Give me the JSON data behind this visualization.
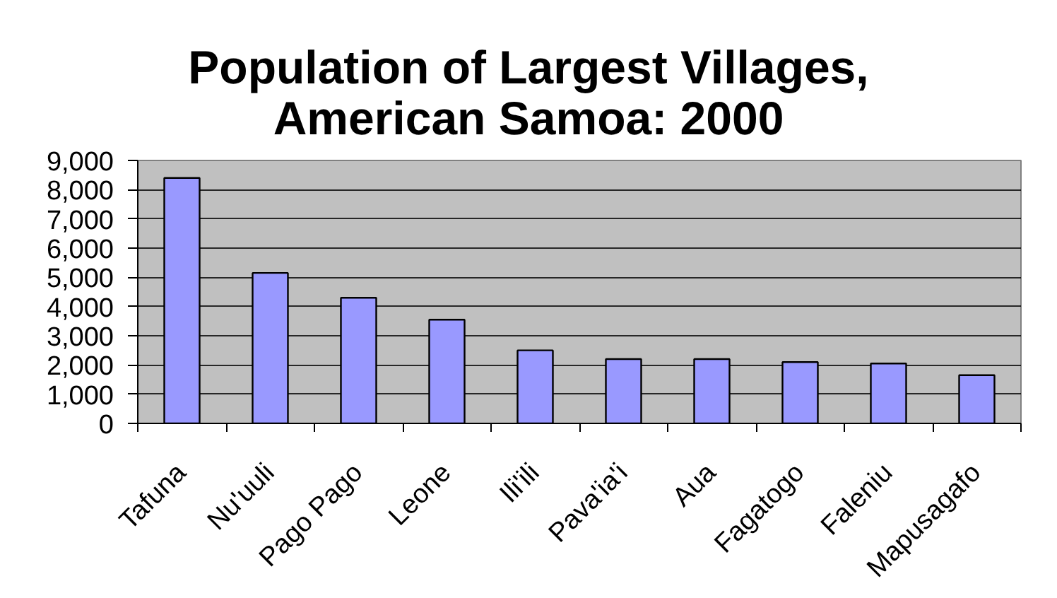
{
  "chart_data": {
    "type": "bar",
    "title": "Population of Largest Villages,\nAmerican Samoa: 2000",
    "categories": [
      "Tafuna",
      "Nu'uuli",
      "Pago Pago",
      "Leone",
      "Ili'ili",
      "Pava'ia'i",
      "Aua",
      "Fagatogo",
      "Faleniu",
      "Mapusagafo"
    ],
    "values": [
      8400,
      5150,
      4300,
      3550,
      2500,
      2200,
      2200,
      2100,
      2050,
      1650
    ],
    "color": "#9999ff",
    "ylim": [
      0,
      9000
    ],
    "yticks": [
      0,
      {
        "value": 1000,
        "label": "1,000"
      },
      {
        "value": 2000,
        "label": "2,000"
      },
      {
        "value": 3000,
        "label": "3,000"
      },
      {
        "value": 4000,
        "label": "4,000"
      },
      {
        "value": 5000,
        "label": "5,000"
      },
      {
        "value": 6000,
        "label": "6,000"
      },
      {
        "value": 7000,
        "label": "7,000"
      },
      {
        "value": 8000,
        "label": "8,000"
      },
      {
        "value": 9000,
        "label": "9,000"
      }
    ],
    "grid": "y"
  }
}
